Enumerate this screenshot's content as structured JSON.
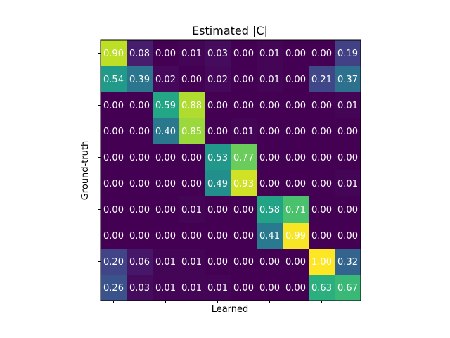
{
  "chart_data": {
    "type": "heatmap",
    "title": "Estimated |C|",
    "xlabel": "Learned",
    "ylabel": "Ground-truth",
    "colormap": "viridis",
    "value_range": [
      0,
      1
    ],
    "grid": false,
    "matrix": [
      [
        0.9,
        0.08,
        0.0,
        0.01,
        0.03,
        0.0,
        0.01,
        0.0,
        0.0,
        0.19
      ],
      [
        0.54,
        0.39,
        0.02,
        0.0,
        0.02,
        0.0,
        0.01,
        0.0,
        0.21,
        0.37
      ],
      [
        0.0,
        0.0,
        0.59,
        0.88,
        0.0,
        0.0,
        0.0,
        0.0,
        0.0,
        0.01
      ],
      [
        0.0,
        0.0,
        0.4,
        0.85,
        0.0,
        0.01,
        0.0,
        0.0,
        0.0,
        0.0
      ],
      [
        0.0,
        0.0,
        0.0,
        0.0,
        0.53,
        0.77,
        0.0,
        0.0,
        0.0,
        0.0
      ],
      [
        0.0,
        0.0,
        0.0,
        0.0,
        0.49,
        0.93,
        0.0,
        0.0,
        0.0,
        0.01
      ],
      [
        0.0,
        0.0,
        0.0,
        0.01,
        0.0,
        0.0,
        0.58,
        0.71,
        0.0,
        0.0
      ],
      [
        0.0,
        0.0,
        0.0,
        0.0,
        0.0,
        0.0,
        0.41,
        0.99,
        0.0,
        0.0
      ],
      [
        0.2,
        0.06,
        0.01,
        0.01,
        0.0,
        0.0,
        0.0,
        0.0,
        1.0,
        0.32
      ],
      [
        0.26,
        0.03,
        0.01,
        0.01,
        0.01,
        0.0,
        0.0,
        0.0,
        0.63,
        0.67
      ]
    ]
  }
}
